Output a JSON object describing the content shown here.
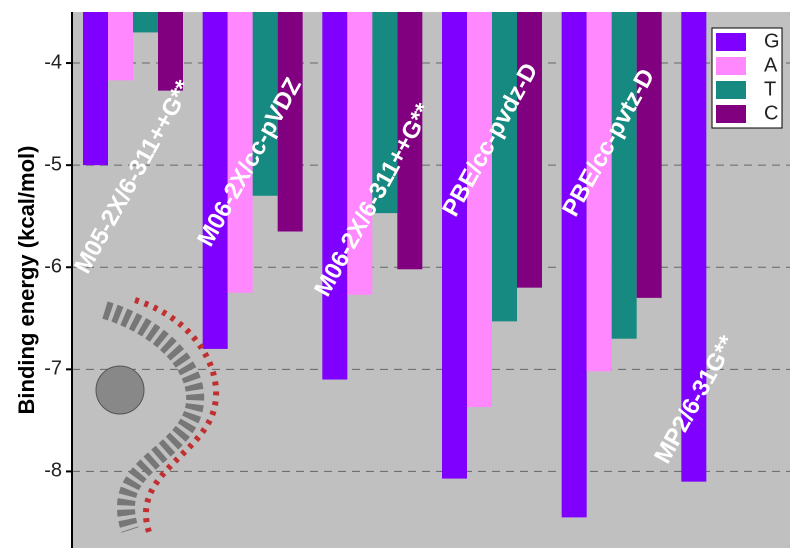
{
  "chart_data": {
    "type": "bar",
    "y_label": "Binding energy (kcal/mol)",
    "categories": [
      "M05-2X/6-311++G**",
      "M06-2X/cc-pVDZ",
      "M06-2X/6-311++G**",
      "PBE/cc-pvdz-D",
      "PBE/cc-pvtz-D",
      "MP2/6-31G**"
    ],
    "series": [
      {
        "name": "G",
        "color": "#7f00ff",
        "values": [
          -5.0,
          -6.8,
          -7.1,
          -8.07,
          -8.45,
          -8.1
        ]
      },
      {
        "name": "A",
        "color": "#ff88ff",
        "values": [
          -4.17,
          -6.25,
          -6.27,
          -7.37,
          -7.02,
          null
        ]
      },
      {
        "name": "T",
        "color": "#168a80",
        "values": [
          -3.7,
          -5.3,
          -5.47,
          -6.53,
          -6.7,
          null
        ]
      },
      {
        "name": "C",
        "color": "#800080",
        "values": [
          -4.27,
          -5.65,
          -6.02,
          -6.2,
          -6.3,
          null
        ]
      }
    ],
    "ylim": [
      -8.75,
      -3.5
    ],
    "yticks": [
      -8,
      -7,
      -6,
      -5,
      -4
    ],
    "grid": true,
    "legend": "top-right"
  }
}
